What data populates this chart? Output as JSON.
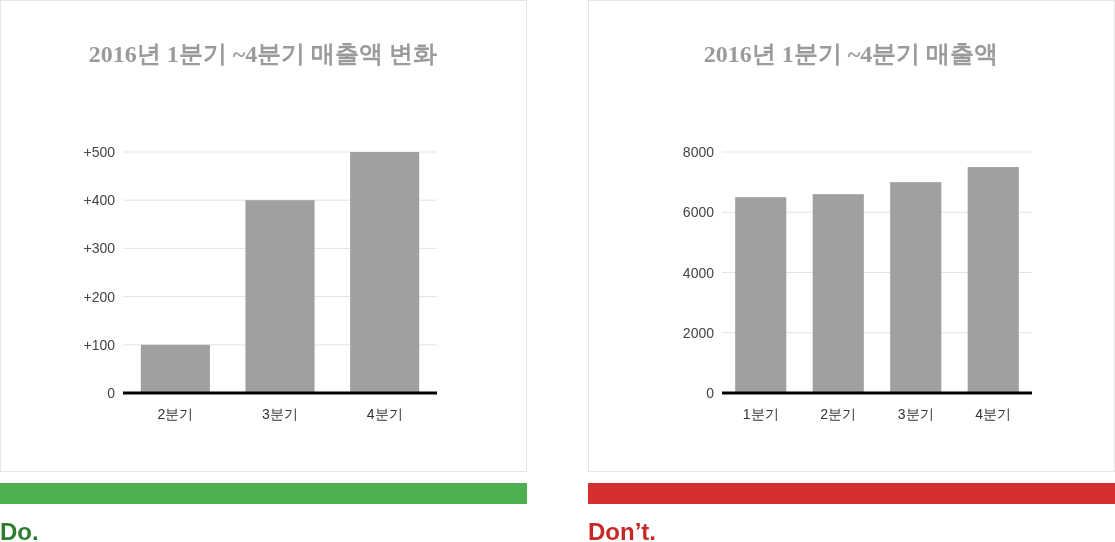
{
  "chart_data": [
    {
      "type": "bar",
      "title": "2016년 1분기 ~4분기 매출액 변화",
      "categories": [
        "2분기",
        "3분기",
        "4분기"
      ],
      "series": [
        {
          "color": "#a0a0a0",
          "values": [
            100,
            400,
            500
          ]
        }
      ],
      "ylim": [
        0,
        500
      ],
      "yticks": [
        0,
        {
          "value": 100,
          "label": "+100"
        },
        {
          "value": 200,
          "label": "+200"
        },
        {
          "value": 300,
          "label": "+300"
        },
        {
          "value": 400,
          "label": "+400"
        },
        {
          "value": 500,
          "label": "+500"
        }
      ],
      "grid": "y",
      "annotations": [
        "Do."
      ]
    },
    {
      "type": "bar",
      "title": "2016년 1분기 ~4분기 매출액",
      "categories": [
        "1분기",
        "2분기",
        "3분기",
        "4분기"
      ],
      "series": [
        {
          "color": "#a0a0a0",
          "values": [
            6500,
            6600,
            7000,
            7500
          ]
        }
      ],
      "ylim": [
        0,
        8000
      ],
      "yticks": [
        0,
        2000,
        4000,
        6000,
        8000
      ],
      "grid": "y",
      "annotations": [
        "Don’t."
      ]
    }
  ]
}
